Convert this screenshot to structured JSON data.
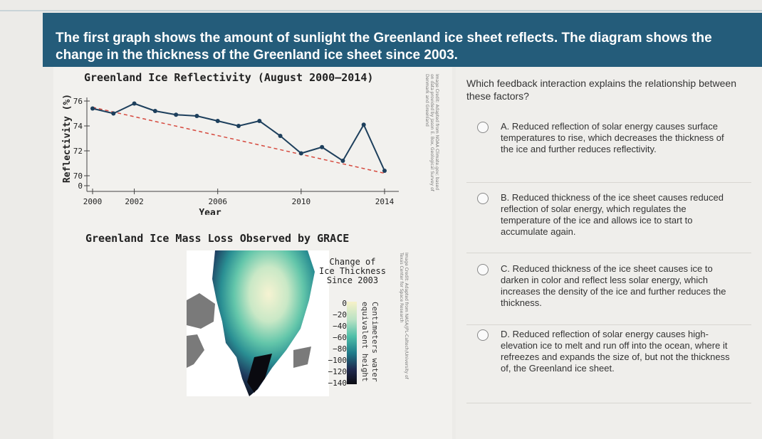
{
  "intro_text": "The first graph shows the amount of sunlight the Greenland ice sheet reflects. The diagram shows the change in the thickness of the Greenland ice sheet since 2003.",
  "chart_data": [
    {
      "type": "line",
      "title": "Greenland Ice Reflectivity (August 2000–2014)",
      "xlabel": "Year",
      "ylabel": "Reflectivity (%)",
      "x": [
        2000,
        2001,
        2002,
        2003,
        2004,
        2005,
        2006,
        2007,
        2008,
        2009,
        2010,
        2011,
        2012,
        2013,
        2014
      ],
      "values": [
        75.4,
        75.0,
        75.8,
        75.2,
        74.9,
        74.8,
        74.4,
        74.0,
        74.4,
        73.2,
        71.8,
        72.3,
        71.2,
        74.1,
        70.4
      ],
      "trend": [
        75.5,
        70.2
      ],
      "xticks": [
        "2000",
        "2002",
        "2006",
        "2010",
        "2014"
      ],
      "yticks": [
        "76",
        "74",
        "72",
        "70",
        "0"
      ],
      "colors": {
        "line": "#1d3f5c",
        "trend": "#d64a3f"
      }
    }
  ],
  "chart1_credit": "Image Credit: Adapted from NOAA Climate.gov; based on data provided by Jason E. Box, Geological Survey of Denmark and Greenland",
  "chart2_title": "Greenland Ice Mass Loss Observed by GRACE",
  "legend": {
    "title_lines": [
      "Change of",
      "Ice Thickness",
      "Since 2003"
    ],
    "ticks": [
      "0",
      "−20",
      "−40",
      "−60",
      "−80",
      "−100",
      "−120",
      "−140"
    ],
    "axis_line1": "Centimeters water",
    "axis_line2": "equivalent height"
  },
  "chart2_credit": "Image Credit: Adapted from NASA/JPL-Caltech/University of Texas Center for Space Research",
  "question": "Which feedback interaction explains the relationship between these factors?",
  "options": [
    {
      "letter": "A.",
      "text": "Reduced reflection of solar energy causes surface temperatures to rise, which decreases the thickness of the ice and further reduces reflectivity."
    },
    {
      "letter": "B.",
      "text": "Reduced thickness of the ice sheet causes reduced reflection of solar energy, which regulates the temperature of the ice and allows ice to start to accumulate again."
    },
    {
      "letter": "C.",
      "text": "Reduced thickness of the ice sheet causes ice to darken in color and reflect less solar energy, which increases the density of the ice and further reduces the thickness."
    },
    {
      "letter": "D.",
      "text": "Reduced reflection of solar energy causes high-elevation ice to melt and run off into the ocean, where it refreezes and expands the size of, but not the thickness of, the Greenland ice sheet."
    }
  ]
}
